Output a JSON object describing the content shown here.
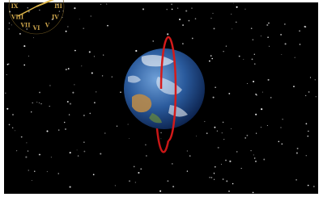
{
  "clock": {
    "numerals": [
      "IX",
      "VIII",
      "VII",
      "VI",
      "V",
      "IV",
      "III"
    ]
  }
}
